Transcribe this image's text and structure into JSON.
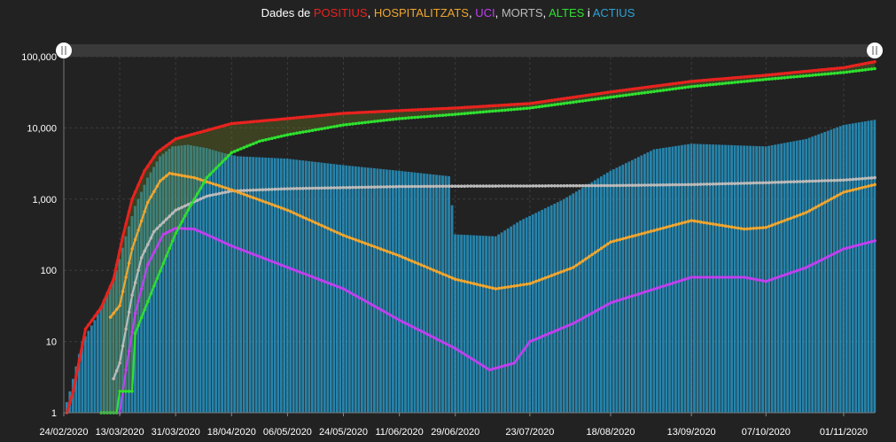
{
  "title": {
    "prefix": "Dades de ",
    "parts": [
      {
        "text": "POSITIUS",
        "color": "#e8231f"
      },
      {
        "text": ", ",
        "color": "#ffffff"
      },
      {
        "text": "HOSPITALITZATS",
        "color": "#f0a630"
      },
      {
        "text": ", ",
        "color": "#ffffff"
      },
      {
        "text": "UCI",
        "color": "#c040f0"
      },
      {
        "text": ", ",
        "color": "#ffffff"
      },
      {
        "text": "MORTS",
        "color": "#bbbbbb"
      },
      {
        "text": ", ",
        "color": "#ffffff"
      },
      {
        "text": "ALTES",
        "color": "#2fe02f"
      },
      {
        "text": " i ",
        "color": "#ffffff"
      },
      {
        "text": "ACTIUS",
        "color": "#2aa4d8"
      }
    ]
  },
  "chart_data": {
    "type": "line",
    "scale_y": "log",
    "ylim": [
      1,
      100000
    ],
    "y_ticks": [
      "1",
      "10",
      "100",
      "1,000",
      "10,000",
      "100,000"
    ],
    "x_ticks": [
      "24/02/2020",
      "13/03/2020",
      "31/03/2020",
      "18/04/2020",
      "06/05/2020",
      "24/05/2020",
      "11/06/2020",
      "29/06/2020",
      "23/07/2020",
      "18/08/2020",
      "13/09/2020",
      "07/10/2020",
      "01/11/2020"
    ],
    "x_start": "24/02/2020",
    "x_end": "11/11/2020",
    "grid": true,
    "legend": "title",
    "series": [
      {
        "name": "ACTIUS",
        "kind": "bar",
        "color": "#2aa4d8",
        "points": [
          [
            "24/02/2020",
            1
          ],
          [
            "26/02/2020",
            2
          ],
          [
            "01/03/2020",
            10
          ],
          [
            "05/03/2020",
            20
          ],
          [
            "09/03/2020",
            45
          ],
          [
            "12/03/2020",
            100
          ],
          [
            "15/03/2020",
            300
          ],
          [
            "18/03/2020",
            800
          ],
          [
            "22/03/2020",
            2000
          ],
          [
            "26/03/2020",
            4000
          ],
          [
            "30/03/2020",
            5500
          ],
          [
            "04/04/2020",
            5800
          ],
          [
            "10/04/2020",
            5200
          ],
          [
            "15/04/2020",
            4500
          ],
          [
            "20/04/2020",
            4000
          ],
          [
            "06/05/2020",
            3700
          ],
          [
            "24/05/2020",
            3000
          ],
          [
            "11/06/2020",
            2500
          ],
          [
            "27/06/2020",
            2100
          ],
          [
            "29/06/2020",
            320
          ],
          [
            "12/07/2020",
            300
          ],
          [
            "20/07/2020",
            500
          ],
          [
            "03/08/2020",
            1000
          ],
          [
            "18/08/2020",
            2500
          ],
          [
            "01/09/2020",
            5000
          ],
          [
            "13/09/2020",
            6000
          ],
          [
            "07/10/2020",
            5500
          ],
          [
            "20/10/2020",
            7000
          ],
          [
            "01/11/2020",
            11000
          ],
          [
            "11/11/2020",
            13000
          ]
        ]
      },
      {
        "name": "POSITIUS",
        "kind": "line",
        "color": "#e8231f",
        "points": [
          [
            "25/02/2020",
            1
          ],
          [
            "27/02/2020",
            2
          ],
          [
            "02/03/2020",
            15
          ],
          [
            "07/03/2020",
            30
          ],
          [
            "11/03/2020",
            75
          ],
          [
            "14/03/2020",
            300
          ],
          [
            "17/03/2020",
            1000
          ],
          [
            "21/03/2020",
            2500
          ],
          [
            "25/03/2020",
            4500
          ],
          [
            "31/03/2020",
            7000
          ],
          [
            "18/04/2020",
            11500
          ],
          [
            "06/05/2020",
            13500
          ],
          [
            "24/05/2020",
            16000
          ],
          [
            "11/06/2020",
            17500
          ],
          [
            "29/06/2020",
            19000
          ],
          [
            "23/07/2020",
            22000
          ],
          [
            "18/08/2020",
            32000
          ],
          [
            "13/09/2020",
            45000
          ],
          [
            "07/10/2020",
            55000
          ],
          [
            "01/11/2020",
            70000
          ],
          [
            "11/11/2020",
            85000
          ]
        ]
      },
      {
        "name": "ALTES",
        "kind": "line",
        "color": "#2fe02f",
        "points": [
          [
            "07/03/2020",
            1
          ],
          [
            "12/03/2020",
            1
          ],
          [
            "13/03/2020",
            2
          ],
          [
            "17/03/2020",
            2
          ],
          [
            "18/03/2020",
            13
          ],
          [
            "24/03/2020",
            60
          ],
          [
            "31/03/2020",
            330
          ],
          [
            "04/04/2020",
            700
          ],
          [
            "10/04/2020",
            2000
          ],
          [
            "18/04/2020",
            4500
          ],
          [
            "27/04/2020",
            6500
          ],
          [
            "06/05/2020",
            8000
          ],
          [
            "24/05/2020",
            11000
          ],
          [
            "11/06/2020",
            13500
          ],
          [
            "29/06/2020",
            15500
          ],
          [
            "23/07/2020",
            19000
          ],
          [
            "18/08/2020",
            27000
          ],
          [
            "13/09/2020",
            38000
          ],
          [
            "07/10/2020",
            48000
          ],
          [
            "01/11/2020",
            60000
          ],
          [
            "11/11/2020",
            68000
          ]
        ]
      },
      {
        "name": "HOSPITALITZATS",
        "kind": "line",
        "color": "#f0a630",
        "points": [
          [
            "10/03/2020",
            22
          ],
          [
            "13/03/2020",
            32
          ],
          [
            "17/03/2020",
            200
          ],
          [
            "22/03/2020",
            900
          ],
          [
            "26/03/2020",
            1800
          ],
          [
            "29/03/2020",
            2300
          ],
          [
            "06/04/2020",
            2000
          ],
          [
            "18/04/2020",
            1350
          ],
          [
            "06/05/2020",
            700
          ],
          [
            "24/05/2020",
            310
          ],
          [
            "11/06/2020",
            160
          ],
          [
            "29/06/2020",
            75
          ],
          [
            "12/07/2020",
            55
          ],
          [
            "23/07/2020",
            65
          ],
          [
            "06/08/2020",
            110
          ],
          [
            "18/08/2020",
            250
          ],
          [
            "13/09/2020",
            500
          ],
          [
            "30/09/2020",
            380
          ],
          [
            "07/10/2020",
            400
          ],
          [
            "20/10/2020",
            650
          ],
          [
            "01/11/2020",
            1250
          ],
          [
            "11/11/2020",
            1600
          ]
        ]
      },
      {
        "name": "UCI",
        "kind": "line",
        "color": "#c040f0",
        "points": [
          [
            "13/03/2020",
            1
          ],
          [
            "15/03/2020",
            4
          ],
          [
            "18/03/2020",
            25
          ],
          [
            "22/03/2020",
            120
          ],
          [
            "27/03/2020",
            320
          ],
          [
            "31/03/2020",
            390
          ],
          [
            "06/04/2020",
            380
          ],
          [
            "18/04/2020",
            220
          ],
          [
            "06/05/2020",
            110
          ],
          [
            "24/05/2020",
            55
          ],
          [
            "11/06/2020",
            20
          ],
          [
            "29/06/2020",
            8
          ],
          [
            "10/07/2020",
            4
          ],
          [
            "18/07/2020",
            5
          ],
          [
            "23/07/2020",
            10
          ],
          [
            "06/08/2020",
            18
          ],
          [
            "18/08/2020",
            35
          ],
          [
            "13/09/2020",
            80
          ],
          [
            "30/09/2020",
            80
          ],
          [
            "07/10/2020",
            70
          ],
          [
            "20/10/2020",
            110
          ],
          [
            "01/11/2020",
            200
          ],
          [
            "11/11/2020",
            260
          ]
        ]
      },
      {
        "name": "MORTS",
        "kind": "line",
        "color": "#bbbbbb",
        "points": [
          [
            "11/03/2020",
            3
          ],
          [
            "13/03/2020",
            5
          ],
          [
            "17/03/2020",
            45
          ],
          [
            "20/03/2020",
            150
          ],
          [
            "24/03/2020",
            350
          ],
          [
            "31/03/2020",
            700
          ],
          [
            "10/04/2020",
            1100
          ],
          [
            "18/04/2020",
            1300
          ],
          [
            "06/05/2020",
            1400
          ],
          [
            "24/05/2020",
            1450
          ],
          [
            "11/06/2020",
            1500
          ],
          [
            "29/06/2020",
            1520
          ],
          [
            "23/07/2020",
            1530
          ],
          [
            "18/08/2020",
            1550
          ],
          [
            "13/09/2020",
            1600
          ],
          [
            "07/10/2020",
            1700
          ],
          [
            "01/11/2020",
            1850
          ],
          [
            "11/11/2020",
            2000
          ]
        ]
      }
    ]
  }
}
